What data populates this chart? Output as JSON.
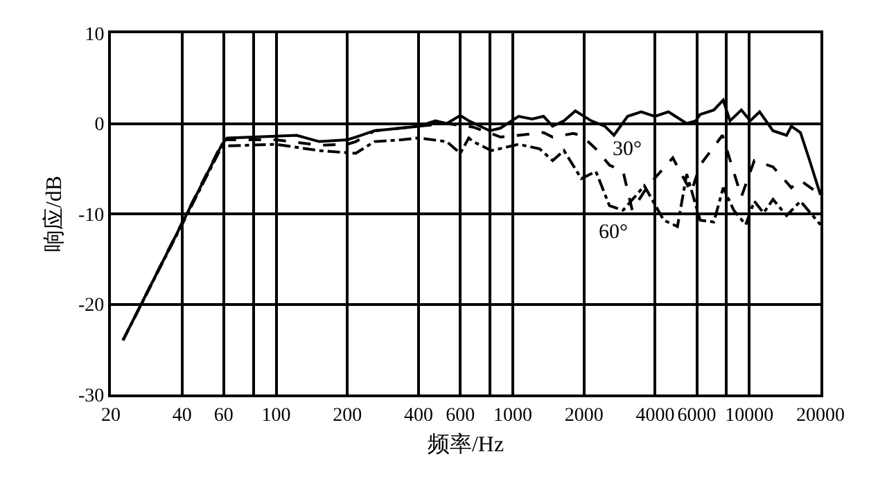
{
  "chart_data": {
    "type": "line",
    "xlabel": "频率/Hz",
    "ylabel": "响应/dB",
    "log": "x",
    "xlim": [
      20,
      20000
    ],
    "xticks": [
      20,
      40,
      60,
      {
        "value": 80,
        "label": null
      },
      100,
      200,
      400,
      600,
      {
        "value": 800,
        "label": null
      },
      1000,
      2000,
      4000,
      6000,
      {
        "value": 8000,
        "label": null
      },
      10000,
      20000
    ],
    "ylim": [
      -30,
      10
    ],
    "yticks": [
      -30,
      -20,
      -10,
      0,
      10
    ],
    "grid": true,
    "series": [
      {
        "color": "#000000",
        "line_style": "solid",
        "x": [
          22.5,
          59,
          62,
          100,
          122,
          152,
          200,
          217,
          260,
          338,
          400,
          471,
          526,
          600,
          652,
          800,
          888,
          1059,
          1209,
          1350,
          1475,
          1647,
          1840,
          2149,
          2452,
          2678,
          3060,
          3492,
          3989,
          4551,
          5440,
          5940,
          6200,
          7083,
          7760,
          8290,
          9260,
          10090,
          11060,
          12600,
          14380,
          15060,
          16460,
          18000,
          20000
        ],
        "values": [
          -24.0,
          -2.3,
          -1.6,
          -1.4,
          -1.3,
          -2.0,
          -1.8,
          -1.5,
          -0.8,
          -0.5,
          -0.3,
          0.3,
          0.0,
          0.9,
          0.3,
          -0.8,
          -0.5,
          0.8,
          0.5,
          0.8,
          -0.3,
          0.3,
          1.4,
          0.3,
          -0.3,
          -1.3,
          0.8,
          1.3,
          0.8,
          1.3,
          0.0,
          0.3,
          1.0,
          1.5,
          2.6,
          0.3,
          1.5,
          0.3,
          1.3,
          -0.8,
          -1.3,
          -0.3,
          -1.0,
          -4.1,
          -7.9
        ]
      },
      {
        "color": "#000000",
        "line_style": "dashed",
        "x": [
          22.5,
          60,
          100,
          152,
          200,
          217,
          260,
          338,
          400,
          526,
          681,
          812,
          888,
          1059,
          1350,
          1475,
          1800,
          1950,
          2246,
          2564,
          2928,
          3200,
          3730,
          4750,
          5680,
          6200,
          7700,
          9260,
          10500,
          12600,
          15060,
          16460,
          20000
        ],
        "values": [
          -24.0,
          -1.8,
          -1.8,
          -2.4,
          -2.3,
          -2.0,
          -0.8,
          -0.5,
          -0.3,
          0.0,
          -0.4,
          -1.1,
          -1.5,
          -1.3,
          -1.0,
          -1.5,
          -1.1,
          -1.3,
          -2.8,
          -4.6,
          -5.3,
          -9.6,
          -6.9,
          -3.8,
          -7.6,
          -4.6,
          -1.3,
          -8.1,
          -4.1,
          -4.8,
          -7.1,
          -6.3,
          -7.9
        ]
      },
      {
        "color": "#000000",
        "line_style": "dashdot",
        "x": [
          22.5,
          59,
          100,
          152,
          217,
          260,
          338,
          400,
          526,
          600,
          652,
          681,
          812,
          1059,
          1300,
          1475,
          1647,
          1950,
          2246,
          2564,
          2928,
          3600,
          4350,
          4970,
          5440,
          6200,
          7083,
          7760,
          8600,
          9660,
          10500,
          11500,
          12600,
          14380,
          16460,
          20000
        ],
        "values": [
          -24.0,
          -2.5,
          -2.3,
          -3.0,
          -3.3,
          -2.0,
          -1.8,
          -1.6,
          -2.0,
          -3.3,
          -1.6,
          -2.0,
          -3.0,
          -2.3,
          -2.8,
          -4.1,
          -3.0,
          -6.1,
          -5.3,
          -9.1,
          -9.6,
          -6.9,
          -10.7,
          -11.4,
          -5.6,
          -10.7,
          -10.9,
          -7.1,
          -9.6,
          -11.2,
          -8.6,
          -9.9,
          -8.4,
          -10.2,
          -8.6,
          -11.2
        ]
      }
    ],
    "annotations": [
      "30°",
      "60°"
    ]
  }
}
